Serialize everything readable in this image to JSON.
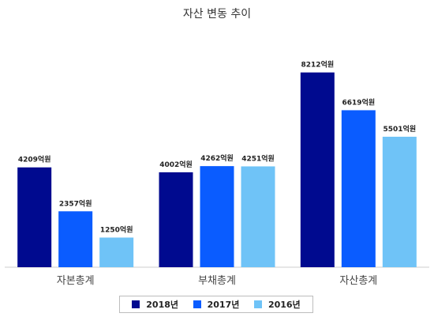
{
  "chart_data": {
    "type": "bar",
    "title": "자산 변동 추이",
    "categories": [
      "자본총계",
      "부채총계",
      "자산총계"
    ],
    "unit": "억원",
    "ylim": [
      0,
      10000
    ],
    "series": [
      {
        "name": "2018년",
        "color": "#000a8f",
        "values": [
          4209,
          4002,
          8212
        ]
      },
      {
        "name": "2017년",
        "color": "#0a5cff",
        "values": [
          2357,
          4262,
          6619
        ]
      },
      {
        "name": "2016년",
        "color": "#6fc3f7",
        "values": [
          1250,
          4251,
          5501
        ]
      }
    ],
    "legend_position": "bottom",
    "grid": false
  }
}
